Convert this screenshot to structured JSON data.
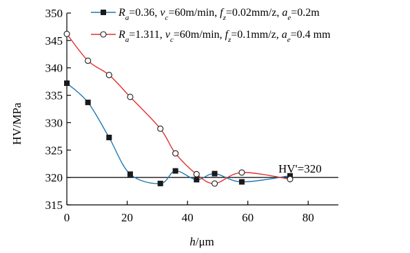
{
  "chart_data": {
    "type": "line",
    "ylabel": "HV/MPa",
    "xlabel_var": "h",
    "xlabel_unit": "/μm",
    "xlim": [
      0,
      90
    ],
    "ylim": [
      315,
      350
    ],
    "x_ticks": [
      0,
      20,
      40,
      60,
      80
    ],
    "y_ticks": [
      315,
      320,
      325,
      330,
      335,
      340,
      345,
      350
    ],
    "grid": false,
    "legend_position": "top-right",
    "reference_line": {
      "value": 320,
      "label": "HV'=320"
    },
    "series": [
      {
        "legend_parts": [
          {
            "t": "R",
            "i": true
          },
          {
            "t": "a",
            "sub": true,
            "i": true
          },
          {
            "t": "=0.36, "
          },
          {
            "t": "v",
            "i": true
          },
          {
            "t": "c",
            "sub": true,
            "i": true
          },
          {
            "t": "=60m/min, "
          },
          {
            "t": "f",
            "i": true
          },
          {
            "t": "z",
            "sub": true,
            "i": true
          },
          {
            "t": "=0.02mm/z, "
          },
          {
            "t": "a",
            "i": true
          },
          {
            "t": "e",
            "sub": true,
            "i": true
          },
          {
            "t": "=0.2m"
          }
        ],
        "marker": "filled-square",
        "color": "#1f77b4",
        "x": [
          0,
          7,
          14,
          21,
          31,
          36,
          43,
          49,
          58,
          74
        ],
        "y": [
          337.2,
          333.7,
          327.3,
          320.6,
          318.9,
          321.2,
          319.6,
          320.7,
          319.2,
          320.3
        ]
      },
      {
        "legend_parts": [
          {
            "t": "R",
            "i": true
          },
          {
            "t": "a",
            "sub": true,
            "i": true
          },
          {
            "t": "=1.311, "
          },
          {
            "t": "v",
            "i": true
          },
          {
            "t": "c",
            "sub": true,
            "i": true
          },
          {
            "t": "=60m/min, "
          },
          {
            "t": "f",
            "i": true
          },
          {
            "t": "z",
            "sub": true,
            "i": true
          },
          {
            "t": "=0.1mm/z, "
          },
          {
            "t": "a",
            "i": true
          },
          {
            "t": "e",
            "sub": true,
            "i": true
          },
          {
            "t": "=0.4 mm"
          }
        ],
        "marker": "open-circle",
        "color": "#e03030",
        "x": [
          0,
          7,
          14,
          21,
          31,
          36,
          43,
          49,
          58,
          74
        ],
        "y": [
          346.2,
          341.3,
          338.7,
          334.7,
          328.9,
          324.4,
          320.6,
          318.9,
          320.9,
          319.7
        ]
      }
    ]
  }
}
